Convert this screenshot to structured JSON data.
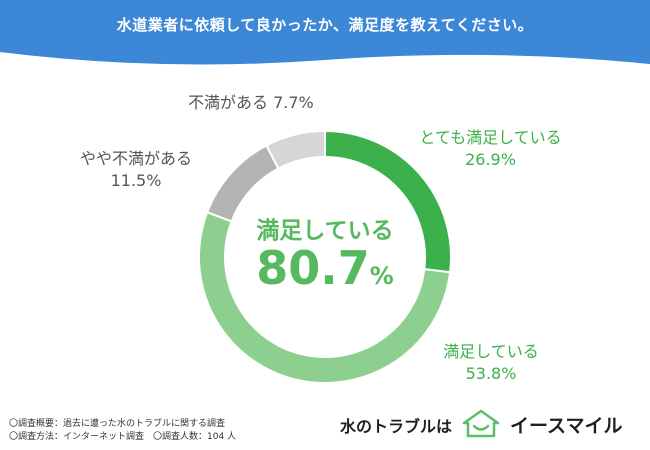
{
  "title": "水道業者に依頼して良かったか、満足度を教えてください。",
  "chart_data": {
    "type": "pie",
    "variant": "donut",
    "slices": [
      {
        "label": "とても満足している",
        "value": 26.9,
        "display": "26.9%",
        "color": "#3cb04a"
      },
      {
        "label": "満足している",
        "value": 53.8,
        "display": "53.8%",
        "color": "#8ccf8e"
      },
      {
        "label": "やや不満がある",
        "value": 11.5,
        "display": "11.5%",
        "color": "#b3b3b3"
      },
      {
        "label": "不満がある",
        "value": 7.7,
        "display": "7.7%",
        "color": "#d6d6d6"
      }
    ],
    "center": {
      "caption": "満足している",
      "number": "80.7",
      "unit": "%"
    }
  },
  "footnotes": [
    "〇調査概要：過去に遭った水のトラブルに関する調査",
    "〇調査方法：インターネット調査　〇調査人数：104 人"
  ],
  "brand": {
    "tagline": "水のトラブルは",
    "name": "イースマイル",
    "logo_icon": "house-smile-icon"
  },
  "colors": {
    "header": "#3c87d6",
    "accent_green": "#3cb04a",
    "light_green": "#8ccf8e",
    "gray_dark": "#b3b3b3",
    "gray_light": "#d6d6d6"
  }
}
